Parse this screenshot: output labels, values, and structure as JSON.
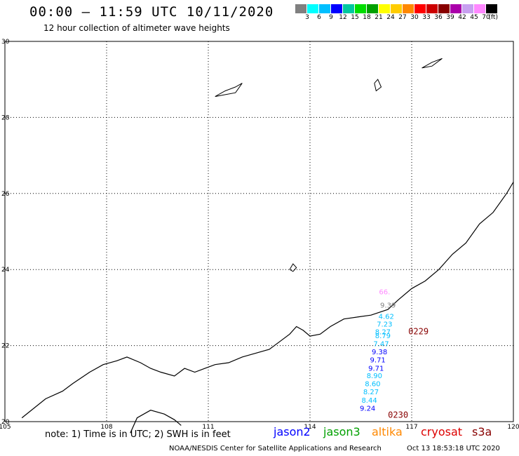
{
  "header": {
    "title": "00:00 – 11:59 UTC 10/11/2020",
    "subtitle": "12 hour collection of altimeter wave heights"
  },
  "legend": {
    "colors": [
      "#808080",
      "#00ffff",
      "#00bfff",
      "#0000ff",
      "#00c8a0",
      "#00dd00",
      "#00a000",
      "#ffff00",
      "#ffcc00",
      "#ff8800",
      "#ff0000",
      "#cc0000",
      "#880000",
      "#aa00aa",
      "#c8a0f0",
      "#ff88ff",
      "#000000"
    ],
    "labels": [
      "3",
      "6",
      "9",
      "12",
      "15",
      "18",
      "21",
      "24",
      "27",
      "30",
      "33",
      "36",
      "39",
      "42",
      "45",
      "70",
      "(ft)"
    ],
    "label_boundaries": [
      1,
      2,
      3,
      4,
      5,
      6,
      7,
      8,
      9,
      10,
      11,
      12,
      13,
      14,
      15,
      16,
      16.6
    ]
  },
  "map": {
    "lon_range": [
      105,
      120
    ],
    "lat_range": [
      20,
      30
    ],
    "lon_ticks": [
      "105",
      "108",
      "111",
      "114",
      "117",
      "120"
    ],
    "lat_ticks": [
      "30",
      "28",
      "26",
      "24",
      "22",
      "20"
    ],
    "lat_tick_values": [
      30,
      28,
      26,
      24,
      22,
      20
    ],
    "lon_tick_values": [
      105,
      108,
      111,
      114,
      117,
      120
    ],
    "grid": true,
    "track_times": [
      {
        "text": "0229",
        "lon": 116.9,
        "lat": 22.3,
        "color": "#880000"
      },
      {
        "text": "0230",
        "lon": 116.3,
        "lat": 20.1,
        "color": "#880000"
      }
    ],
    "wave_heights": [
      {
        "text": "66.",
        "lon": 116.2,
        "lat": 23.35,
        "color": "#ff88ff"
      },
      {
        "text": "9.39",
        "lon": 116.3,
        "lat": 23.0,
        "color": "#808080"
      },
      {
        "text": "4.62",
        "lon": 116.25,
        "lat": 22.7,
        "color": "#00bfff"
      },
      {
        "text": "7.23",
        "lon": 116.2,
        "lat": 22.5,
        "color": "#00bfff"
      },
      {
        "text": "8.27",
        "lon": 116.15,
        "lat": 22.3,
        "color": "#00bfff"
      },
      {
        "text": "8.79",
        "lon": 116.15,
        "lat": 22.2,
        "color": "#00bfff"
      },
      {
        "text": "7.47",
        "lon": 116.1,
        "lat": 21.98,
        "color": "#00bfff"
      },
      {
        "text": "9.38",
        "lon": 116.05,
        "lat": 21.77,
        "color": "#0000ff"
      },
      {
        "text": "9.71",
        "lon": 116.0,
        "lat": 21.56,
        "color": "#0000ff"
      },
      {
        "text": "9.71",
        "lon": 115.95,
        "lat": 21.34,
        "color": "#0000ff"
      },
      {
        "text": "8.90",
        "lon": 115.9,
        "lat": 21.14,
        "color": "#00bfff"
      },
      {
        "text": "8.60",
        "lon": 115.85,
        "lat": 20.93,
        "color": "#00bfff"
      },
      {
        "text": "8.27",
        "lon": 115.8,
        "lat": 20.72,
        "color": "#00bfff"
      },
      {
        "text": "8.44",
        "lon": 115.75,
        "lat": 20.5,
        "color": "#00bfff"
      },
      {
        "text": "9.24",
        "lon": 115.7,
        "lat": 20.29,
        "color": "#0000ff"
      }
    ],
    "coastline": [
      [
        105.5,
        20.1
      ],
      [
        106.2,
        20.6
      ],
      [
        106.7,
        20.8
      ],
      [
        107.0,
        21.0
      ],
      [
        107.5,
        21.3
      ],
      [
        107.9,
        21.5
      ],
      [
        108.3,
        21.6
      ],
      [
        108.6,
        21.7
      ],
      [
        109.0,
        21.55
      ],
      [
        109.3,
        21.4
      ],
      [
        109.6,
        21.3
      ],
      [
        110.0,
        21.2
      ],
      [
        110.3,
        21.4
      ],
      [
        110.6,
        21.3
      ],
      [
        110.9,
        21.4
      ],
      [
        111.2,
        21.5
      ],
      [
        111.6,
        21.55
      ],
      [
        112.0,
        21.7
      ],
      [
        112.4,
        21.8
      ],
      [
        112.8,
        21.9
      ],
      [
        113.1,
        22.1
      ],
      [
        113.4,
        22.3
      ],
      [
        113.6,
        22.5
      ],
      [
        113.8,
        22.4
      ],
      [
        114.0,
        22.25
      ],
      [
        114.3,
        22.3
      ],
      [
        114.6,
        22.5
      ],
      [
        115.0,
        22.7
      ],
      [
        115.4,
        22.75
      ],
      [
        115.8,
        22.8
      ],
      [
        116.3,
        22.95
      ],
      [
        116.6,
        23.2
      ],
      [
        117.0,
        23.5
      ],
      [
        117.4,
        23.7
      ],
      [
        117.8,
        24.0
      ],
      [
        118.2,
        24.4
      ],
      [
        118.6,
        24.7
      ],
      [
        119.0,
        25.2
      ],
      [
        119.4,
        25.5
      ],
      [
        119.8,
        26.0
      ],
      [
        120.0,
        26.3
      ]
    ],
    "hainan": [
      [
        108.7,
        19.7
      ],
      [
        108.9,
        20.1
      ],
      [
        109.3,
        20.3
      ],
      [
        109.7,
        20.2
      ],
      [
        110.0,
        20.05
      ],
      [
        110.2,
        19.9
      ]
    ],
    "islands": [
      [
        [
          111.2,
          28.55
        ],
        [
          111.5,
          28.7
        ],
        [
          111.8,
          28.8
        ],
        [
          112.0,
          28.9
        ],
        [
          111.8,
          28.65
        ],
        [
          111.5,
          28.6
        ],
        [
          111.2,
          28.55
        ]
      ],
      [
        [
          115.9,
          28.9
        ],
        [
          116.0,
          29.0
        ],
        [
          116.1,
          28.8
        ],
        [
          115.95,
          28.7
        ],
        [
          115.9,
          28.9
        ]
      ],
      [
        [
          117.3,
          29.3
        ],
        [
          117.6,
          29.45
        ],
        [
          117.9,
          29.55
        ],
        [
          117.6,
          29.35
        ],
        [
          117.3,
          29.3
        ]
      ],
      [
        [
          113.4,
          24.0
        ],
        [
          113.5,
          24.15
        ],
        [
          113.6,
          24.05
        ],
        [
          113.5,
          23.95
        ],
        [
          113.4,
          24.0
        ]
      ]
    ]
  },
  "footer": {
    "note": "note: 1) Time is in UTC; 2) SWH is in feet",
    "satellites": [
      {
        "name": "jason2",
        "color": "#0000ff"
      },
      {
        "name": "jason3",
        "color": "#00a000"
      },
      {
        "name": "altika",
        "color": "#ff8800"
      },
      {
        "name": "cryosat",
        "color": "#dd0000"
      },
      {
        "name": "s3a",
        "color": "#880000"
      }
    ],
    "credit": "NOAA/NESDIS Center for Satellite Applications and Research",
    "timestamp": "Oct 13 18:53:18 UTC 2020"
  }
}
